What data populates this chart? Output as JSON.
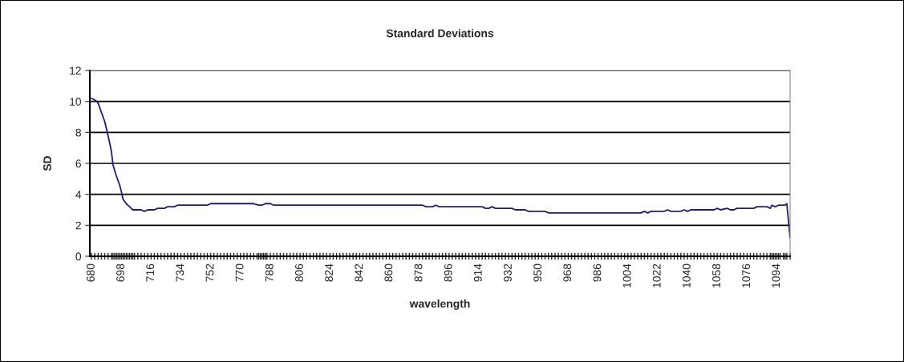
{
  "chart_data": {
    "type": "line",
    "title": "Standard Deviations",
    "xlabel": "wavelength",
    "ylabel": "SD",
    "x": [
      680,
      682,
      684,
      686,
      688,
      690,
      692,
      693,
      695,
      697,
      698,
      699,
      701,
      703,
      705,
      710,
      712,
      714,
      718,
      720,
      724,
      726,
      730,
      732,
      750,
      752,
      778,
      781,
      783,
      785,
      788,
      790,
      880,
      882,
      886,
      888,
      890,
      916,
      918,
      920,
      922,
      924,
      934,
      936,
      942,
      944,
      954,
      956,
      1012,
      1014,
      1016,
      1018,
      1026,
      1028,
      1030,
      1036,
      1038,
      1040,
      1042,
      1056,
      1058,
      1060,
      1064,
      1066,
      1068,
      1070,
      1080,
      1082,
      1088,
      1090,
      1091,
      1093,
      1095,
      1099,
      1100,
      1102
    ],
    "series": [
      {
        "color": "#1f1f6e",
        "values": [
          10.2,
          10.1,
          9.9,
          9.3,
          8.7,
          7.8,
          6.8,
          5.9,
          5.2,
          4.6,
          4.2,
          3.7,
          3.4,
          3.2,
          3.0,
          3.0,
          2.9,
          3.0,
          3.0,
          3.1,
          3.1,
          3.2,
          3.2,
          3.3,
          3.3,
          3.4,
          3.4,
          3.3,
          3.3,
          3.4,
          3.4,
          3.3,
          3.3,
          3.2,
          3.2,
          3.3,
          3.2,
          3.2,
          3.1,
          3.1,
          3.2,
          3.1,
          3.1,
          3.0,
          3.0,
          2.9,
          2.9,
          2.8,
          2.8,
          2.9,
          2.8,
          2.9,
          2.9,
          3.0,
          2.9,
          2.9,
          3.0,
          2.9,
          3.0,
          3.0,
          3.1,
          3.0,
          3.1,
          3.0,
          3.0,
          3.1,
          3.1,
          3.2,
          3.2,
          3.1,
          3.3,
          3.2,
          3.3,
          3.3,
          3.4,
          1.2
        ]
      }
    ],
    "xlim": [
      679,
      1102
    ],
    "xticks": [
      680,
      698,
      716,
      734,
      752,
      770,
      788,
      806,
      824,
      842,
      860,
      878,
      896,
      914,
      932,
      950,
      968,
      986,
      1004,
      1022,
      1040,
      1058,
      1076,
      1094
    ],
    "ylim": [
      0,
      12
    ],
    "yticks": [
      0,
      2,
      4,
      6,
      8,
      10,
      12
    ],
    "grid": "y",
    "legend": false,
    "marker": "none",
    "line_style": "solid"
  }
}
